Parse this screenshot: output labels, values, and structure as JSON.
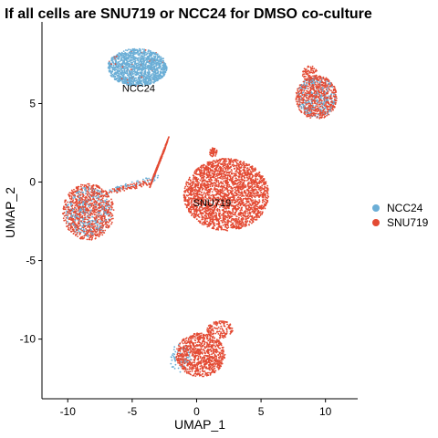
{
  "chart_data": {
    "type": "scatter",
    "title": "If all cells are SNU719 or NCC24 for DMSO co-culture",
    "xlabel": "UMAP_1",
    "ylabel": "UMAP_2",
    "xlim": [
      -12,
      12.5
    ],
    "ylim": [
      -13.8,
      10.2
    ],
    "xticks": [
      -10,
      -5,
      0,
      5,
      10
    ],
    "yticks": [
      -10,
      -5,
      0,
      5
    ],
    "grid": false,
    "legend": {
      "position": "right",
      "entries": [
        {
          "name": "NCC24",
          "color": "#6BAED6"
        },
        {
          "name": "SNU719",
          "color": "#E34A33"
        }
      ]
    },
    "cluster_labels": [
      {
        "text": "NCC24",
        "x": -4.5,
        "y": 6.0
      },
      {
        "text": "SNU719",
        "x": 1.2,
        "y": -1.3
      }
    ],
    "clusters": [
      {
        "series": "NCC24",
        "cx": -4.6,
        "cy": 7.3,
        "rx": 2.3,
        "ry": 1.2,
        "n": 1400
      },
      {
        "series": "SNU719",
        "cx": -4.6,
        "cy": 7.3,
        "rx": 2.3,
        "ry": 1.2,
        "n": 40
      },
      {
        "series": "SNU719",
        "cx": 2.3,
        "cy": -0.8,
        "rx": 3.3,
        "ry": 2.3,
        "n": 2600
      },
      {
        "series": "SNU719",
        "cx": 9.3,
        "cy": 5.4,
        "rx": 1.6,
        "ry": 1.4,
        "n": 700
      },
      {
        "series": "NCC24",
        "cx": 9.3,
        "cy": 5.4,
        "rx": 1.5,
        "ry": 1.3,
        "n": 260
      },
      {
        "series": "SNU719",
        "cx": 8.8,
        "cy": 6.9,
        "rx": 0.6,
        "ry": 0.5,
        "n": 80
      },
      {
        "series": "SNU719",
        "cx": -8.4,
        "cy": -1.9,
        "rx": 2.0,
        "ry": 1.8,
        "n": 900
      },
      {
        "series": "NCC24",
        "cx": -8.4,
        "cy": -1.9,
        "rx": 1.8,
        "ry": 1.6,
        "n": 320
      },
      {
        "series": "SNU719",
        "cx": 0.3,
        "cy": -11.0,
        "rx": 1.9,
        "ry": 1.4,
        "n": 900
      },
      {
        "series": "NCC24",
        "cx": -1.2,
        "cy": -11.2,
        "rx": 0.9,
        "ry": 0.9,
        "n": 60
      },
      {
        "series": "SNU719",
        "cx": 1.8,
        "cy": -9.4,
        "rx": 1.0,
        "ry": 0.6,
        "n": 140
      },
      {
        "series": "SNU719",
        "cx": 1.3,
        "cy": 1.9,
        "rx": 0.3,
        "ry": 0.3,
        "n": 50
      }
    ],
    "bridges": [
      {
        "series": "SNU719",
        "x1": -2.3,
        "y1": 2.5,
        "x2": -3.5,
        "y2": 0.0,
        "width": 0.45,
        "n": 350
      },
      {
        "series": "SNU719",
        "x1": -3.5,
        "y1": 0.0,
        "x2": -6.8,
        "y2": -0.6,
        "width": 0.2,
        "n": 90
      },
      {
        "series": "NCC24",
        "x1": -3.0,
        "y1": 0.3,
        "x2": -6.8,
        "y2": -0.6,
        "width": 0.2,
        "n": 50
      }
    ]
  }
}
